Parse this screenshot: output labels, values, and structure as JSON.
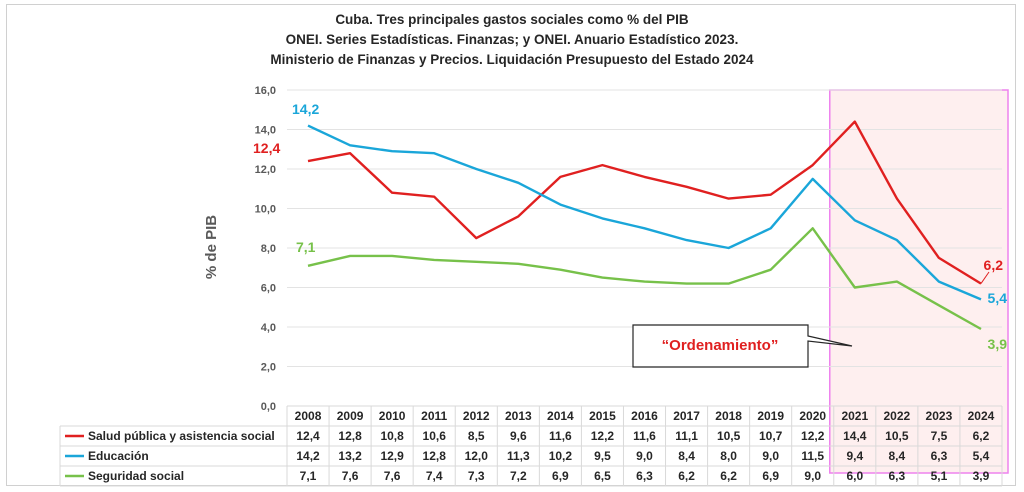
{
  "title_lines": [
    "Cuba. Tres principales gastos sociales como % del PIB",
    "ONEI. Series Estadísticas. Finanzas; y ONEI. Anuario Estadístico 2023.",
    "Ministerio de Finanzas y Precios. Liquidación Presupuesto del Estado 2024"
  ],
  "annotation_label": "“Ordenamiento”",
  "chart_data": {
    "type": "line",
    "ylabel": "% de PIB",
    "ylim": [
      0,
      16
    ],
    "y_ticks": [
      "0,0",
      "2,0",
      "4,0",
      "6,0",
      "8,0",
      "10,0",
      "12,0",
      "14,0",
      "16,0"
    ],
    "categories": [
      "2008",
      "2009",
      "2010",
      "2011",
      "2012",
      "2013",
      "2014",
      "2015",
      "2016",
      "2017",
      "2018",
      "2019",
      "2020",
      "2021",
      "2022",
      "2023",
      "2024"
    ],
    "highlight_range": [
      "2021",
      "2024"
    ],
    "series": [
      {
        "name": "Salud pública y asistencia social",
        "color": "#e02020",
        "values": [
          12.4,
          12.8,
          10.8,
          10.6,
          8.5,
          9.6,
          11.6,
          12.2,
          11.6,
          11.1,
          10.5,
          10.7,
          12.2,
          14.4,
          10.5,
          7.5,
          6.2
        ],
        "table": [
          "12,4",
          "12,8",
          "10,8",
          "10,6",
          "8,5",
          "9,6",
          "11,6",
          "12,2",
          "11,6",
          "11,1",
          "10,5",
          "10,7",
          "12,2",
          "14,4",
          "10,5",
          "7,5",
          "6,2"
        ],
        "start_label": "12,4",
        "end_label": "6,2"
      },
      {
        "name": "Educación",
        "color": "#1aa6d9",
        "values": [
          14.2,
          13.2,
          12.9,
          12.8,
          12.0,
          11.3,
          10.2,
          9.5,
          9.0,
          8.4,
          8.0,
          9.0,
          11.5,
          9.4,
          8.4,
          6.3,
          5.4
        ],
        "table": [
          "14,2",
          "13,2",
          "12,9",
          "12,8",
          "12,0",
          "11,3",
          "10,2",
          "9,5",
          "9,0",
          "8,4",
          "8,0",
          "9,0",
          "11,5",
          "9,4",
          "8,4",
          "6,3",
          "5,4"
        ],
        "start_label": "14,2",
        "end_label": "5,4"
      },
      {
        "name": "Seguridad social",
        "color": "#77c14a",
        "values": [
          7.1,
          7.6,
          7.6,
          7.4,
          7.3,
          7.2,
          6.9,
          6.5,
          6.3,
          6.2,
          6.2,
          6.9,
          9.0,
          6.0,
          6.3,
          5.1,
          3.9
        ],
        "table": [
          "7,1",
          "7,6",
          "7,6",
          "7,4",
          "7,3",
          "7,2",
          "6,9",
          "6,5",
          "6,3",
          "6,2",
          "6,2",
          "6,9",
          "9,0",
          "6,0",
          "6,3",
          "5,1",
          "3,9"
        ],
        "start_label": "7,1",
        "end_label": "3,9"
      }
    ]
  }
}
